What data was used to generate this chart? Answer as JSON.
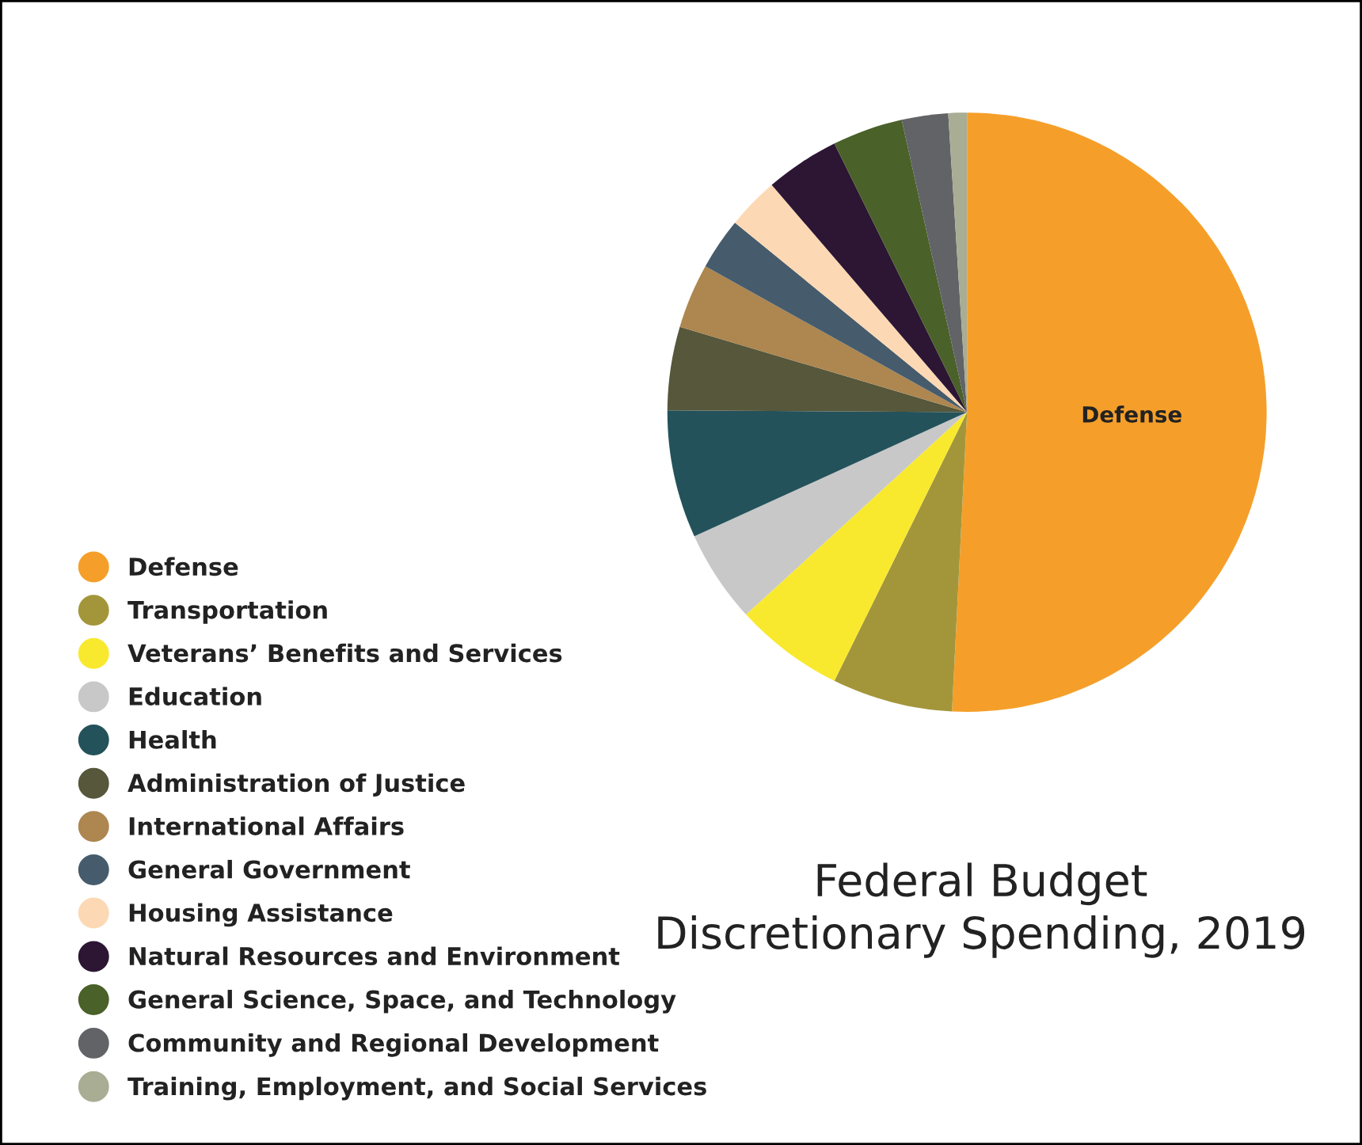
{
  "chart_data": {
    "type": "pie",
    "title": "Federal Budget\nDiscretionary Spending, 2019",
    "categories": [
      "Defense",
      "Transportation",
      "Veterans’ Benefits and Services",
      "Education",
      "Health",
      "Administration of Justice",
      "International Affairs",
      "General Government",
      "Housing Assistance",
      "Natural Resources and Environment",
      "General Science, Space, and Technology",
      "Community and Regional Development",
      "Training, Employment, and Social Services"
    ],
    "values": [
      50.8,
      6.5,
      5.9,
      5.0,
      6.9,
      4.5,
      3.5,
      2.8,
      2.8,
      4.0,
      3.8,
      2.5,
      1.0
    ],
    "colors": [
      "#f59f2a",
      "#a3963a",
      "#f9e92e",
      "#c8c8c8",
      "#24525b",
      "#56573b",
      "#ad8650",
      "#465c6c",
      "#fcd9b4",
      "#2c1633",
      "#4a6129",
      "#626367",
      "#a8ad94"
    ],
    "annotations": [
      {
        "text": "Defense",
        "x": "Defense"
      }
    ],
    "legend": "left"
  }
}
